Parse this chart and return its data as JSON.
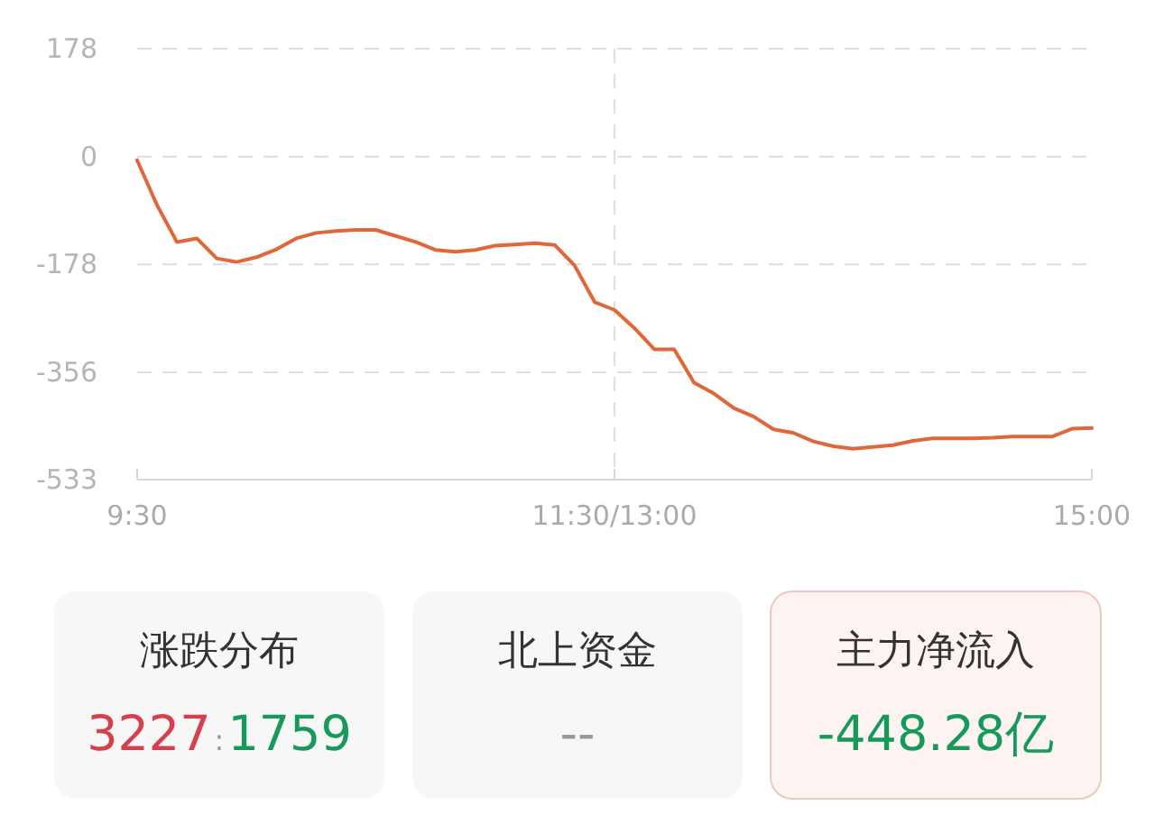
{
  "chart_data": [
    {
      "type": "line",
      "categories": [
        "9:30",
        null,
        null,
        null,
        null,
        null,
        null,
        null,
        null,
        null,
        null,
        null,
        null,
        null,
        null,
        null,
        null,
        null,
        null,
        null,
        null,
        null,
        null,
        null,
        "11:30/13:00",
        null,
        null,
        null,
        null,
        null,
        null,
        null,
        null,
        null,
        null,
        null,
        null,
        null,
        null,
        null,
        null,
        null,
        null,
        null,
        null,
        null,
        null,
        null,
        "15:00"
      ],
      "ylim": [
        -533,
        178
      ],
      "yticks": [
        178,
        0,
        -178,
        -356,
        -533
      ],
      "grid": "y",
      "ref_lines": [
        {
          "axis": "x",
          "value": "11:30/13:00",
          "line_style": "dashed"
        }
      ],
      "series": [
        {
          "color": "#e0673a",
          "values": [
            -6,
            -80,
            -141,
            -135,
            -168,
            -174,
            -166,
            -153,
            -135,
            -126,
            -123,
            -121,
            -121,
            -131,
            -141,
            -154,
            -157,
            -154,
            -147,
            -145,
            -143,
            -146,
            -180,
            -240,
            -253,
            -283,
            -318,
            -318,
            -373,
            -391,
            -415,
            -429,
            -450,
            -456,
            -470,
            -478,
            -482,
            -479,
            -476,
            -469,
            -465,
            -465,
            -465,
            -464,
            -462,
            -462,
            -462,
            -449,
            -448
          ]
        }
      ]
    },
    {
      "type": "other",
      "categories": [
        "涨跌分布",
        "北上资金",
        "主力净流入"
      ],
      "value_labels": [
        [
          "3227",
          ":",
          "1759"
        ],
        [
          "--"
        ],
        [
          "-448.28亿"
        ]
      ],
      "colors": [
        [
          "#d6404c",
          "#999999",
          "#159a5a"
        ],
        [
          "#999999"
        ],
        [
          "#159a5a"
        ]
      ]
    }
  ]
}
